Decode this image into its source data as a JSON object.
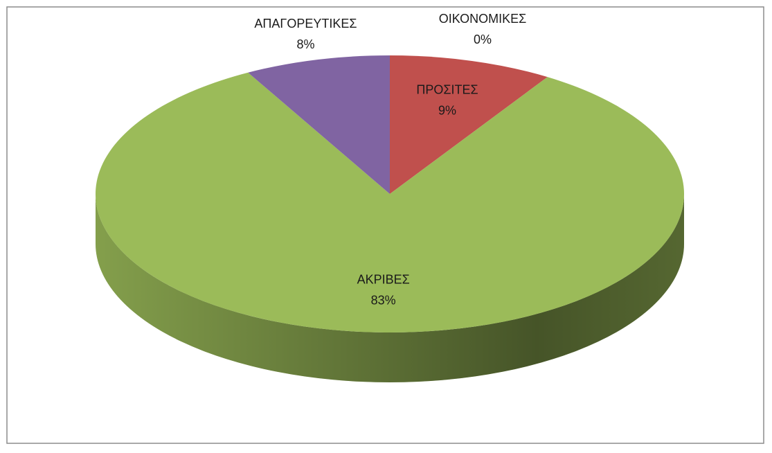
{
  "chart_data": {
    "type": "pie",
    "categories": [
      "ΟΙΚΟΝΟΜΙΚΕΣ",
      "ΠΡΟΣΙΤΕΣ",
      "ΑΚΡΙΒΕΣ",
      "ΑΠΑΓΟΡΕΥΤΙΚΕΣ"
    ],
    "values": [
      0,
      9,
      83,
      8
    ],
    "value_labels": [
      "0%",
      "9%",
      "83%",
      "8%"
    ],
    "colors": [
      "#4f81bd",
      "#c0504d",
      "#9bbb59",
      "#8064a2"
    ]
  }
}
